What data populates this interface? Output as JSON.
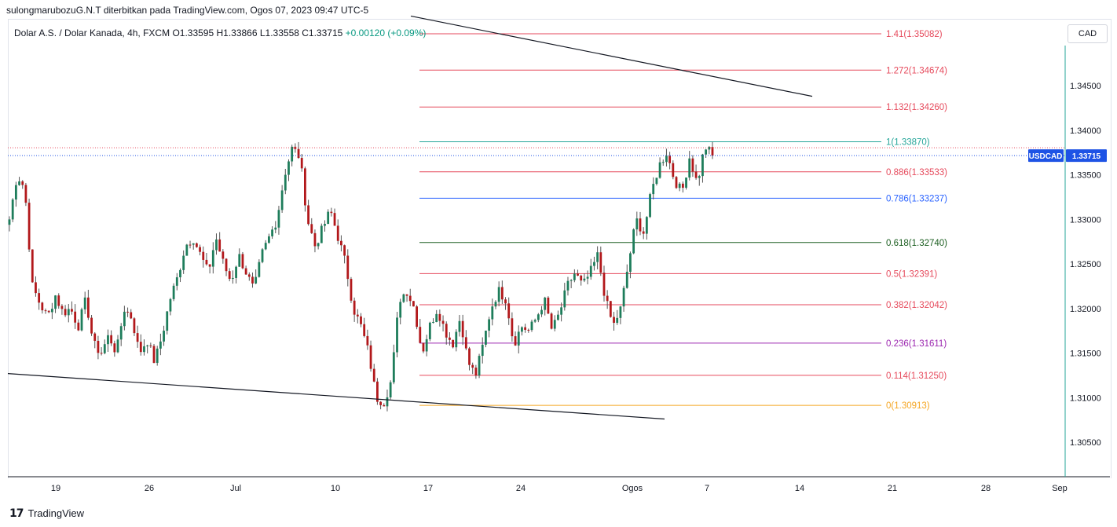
{
  "header": {
    "published_by": "sulongmarubozuG.N.T diterbitkan pada TradingView.com, Ogos 07, 2023 09:47 UTC-5"
  },
  "legend": {
    "symbol": "Dolar A.S. / Dolar Kanada, 4h, FXCM",
    "ohlc": "O1.33595 H1.33866 L1.33558 C1.33715",
    "change": "+0.00120 (+0.09%)"
  },
  "currency_button": "CAD",
  "price_tag": {
    "label": "USDCAD",
    "value": "1.33715"
  },
  "footer": {
    "brand": "TradingView"
  },
  "colors": {
    "up": "#089981",
    "down": "#b2181b",
    "accent": "#1e53e5",
    "axis": "#131722"
  },
  "chart_data": {
    "type": "candlestick",
    "title": "",
    "xlabel": "",
    "ylabel": "",
    "ylim": [
      1.303,
      1.354
    ],
    "y_ticks": [
      "1.30500",
      "1.31000",
      "1.31500",
      "1.32000",
      "1.32500",
      "1.33000",
      "1.33500",
      "1.34000",
      "1.34500"
    ],
    "x_ticks": [
      "19",
      "26",
      "Jul",
      "10",
      "17",
      "24",
      "Ogos",
      "7",
      "14",
      "21",
      "28",
      "Sep"
    ],
    "last_price": 1.33715,
    "fibonacci": [
      {
        "label": "1.41(1.35082)",
        "level": 1.35082,
        "color": "#e64a5c"
      },
      {
        "label": "1.272(1.34674)",
        "level": 1.34674,
        "color": "#e64a5c"
      },
      {
        "label": "1.132(1.34260)",
        "level": 1.3426,
        "color": "#e64a5c"
      },
      {
        "label": "1(1.33870)",
        "level": 1.3387,
        "color": "#26a69a"
      },
      {
        "label": "0.886(1.33533)",
        "level": 1.33533,
        "color": "#e64a5c"
      },
      {
        "label": "0.786(1.33237)",
        "level": 1.33237,
        "color": "#2962ff"
      },
      {
        "label": "0.618(1.32740)",
        "level": 1.3274,
        "color": "#1b5e20"
      },
      {
        "label": "0.5(1.32391)",
        "level": 1.32391,
        "color": "#e64a5c"
      },
      {
        "label": "0.382(1.32042)",
        "level": 1.32042,
        "color": "#e64a5c"
      },
      {
        "label": "0.236(1.31611)",
        "level": 1.31611,
        "color": "#9c27b0"
      },
      {
        "label": "0.114(1.31250)",
        "level": 1.3125,
        "color": "#e64a5c"
      },
      {
        "label": "0(1.30913)",
        "level": 1.30913,
        "color": "#f5a623"
      }
    ],
    "trendlines": [
      {
        "from": {
          "date": "Jul 15",
          "price": 1.3528
        },
        "to": {
          "date": "Aug 15",
          "price": 1.3438
        }
      },
      {
        "from": {
          "date": "Jun 15",
          "price": 1.3127
        },
        "to": {
          "date": "Aug 10",
          "price": 1.3076
        }
      }
    ],
    "series_keypoints": [
      1.33,
      1.335,
      1.3335,
      1.3225,
      1.3205,
      1.319,
      1.3215,
      1.3195,
      1.32,
      1.318,
      1.321,
      1.316,
      1.315,
      1.317,
      1.315,
      1.32,
      1.319,
      1.315,
      1.3165,
      1.314,
      1.317,
      1.321,
      1.3235,
      1.327,
      1.328,
      1.326,
      1.324,
      1.328,
      1.325,
      1.323,
      1.326,
      1.324,
      1.322,
      1.326,
      1.328,
      1.33,
      1.335,
      1.338,
      1.337,
      1.33,
      1.327,
      1.329,
      1.331,
      1.328,
      1.325,
      1.32,
      1.318,
      1.315,
      1.31,
      1.3095,
      1.312,
      1.321,
      1.322,
      1.32,
      1.315,
      1.318,
      1.32,
      1.3175,
      1.316,
      1.319,
      1.314,
      1.3125,
      1.316,
      1.32,
      1.322,
      1.321,
      1.316,
      1.318,
      1.3175,
      1.319,
      1.321,
      1.3175,
      1.3195,
      1.3225,
      1.324,
      1.3225,
      1.324,
      1.326,
      1.321,
      1.318,
      1.32,
      1.325,
      1.33,
      1.3285,
      1.333,
      1.336,
      1.3375,
      1.3345,
      1.333,
      1.337,
      1.334,
      1.3382,
      1.3372
    ]
  }
}
